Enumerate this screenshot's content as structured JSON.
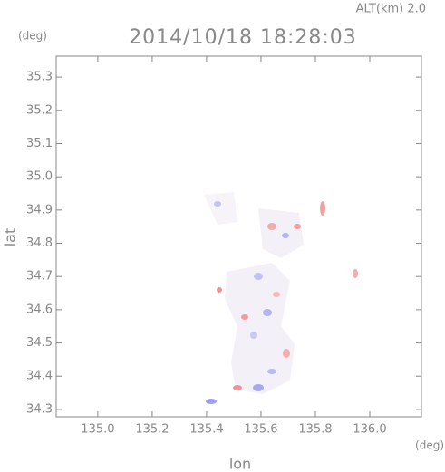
{
  "chart_data": {
    "type": "map",
    "title": "2014/10/18 18:28:03",
    "subtitle": "ALT(km) 2.0",
    "xlabel": "lon",
    "ylabel": "lat",
    "xunit": "(deg)",
    "yunit": "(deg)",
    "xlim": [
      134.847,
      136.19
    ],
    "ylim": [
      34.278,
      35.363
    ],
    "xticks": [
      {
        "value": 135,
        "label": "135.0"
      },
      135.2,
      135.4,
      135.6,
      135.8,
      {
        "value": 136,
        "label": "136.0"
      }
    ],
    "yticks": [
      34.3,
      34.4,
      34.5,
      34.6,
      34.7,
      34.8,
      34.9,
      {
        "value": 35,
        "label": "35.0"
      },
      35.1,
      35.2,
      35.3
    ]
  }
}
